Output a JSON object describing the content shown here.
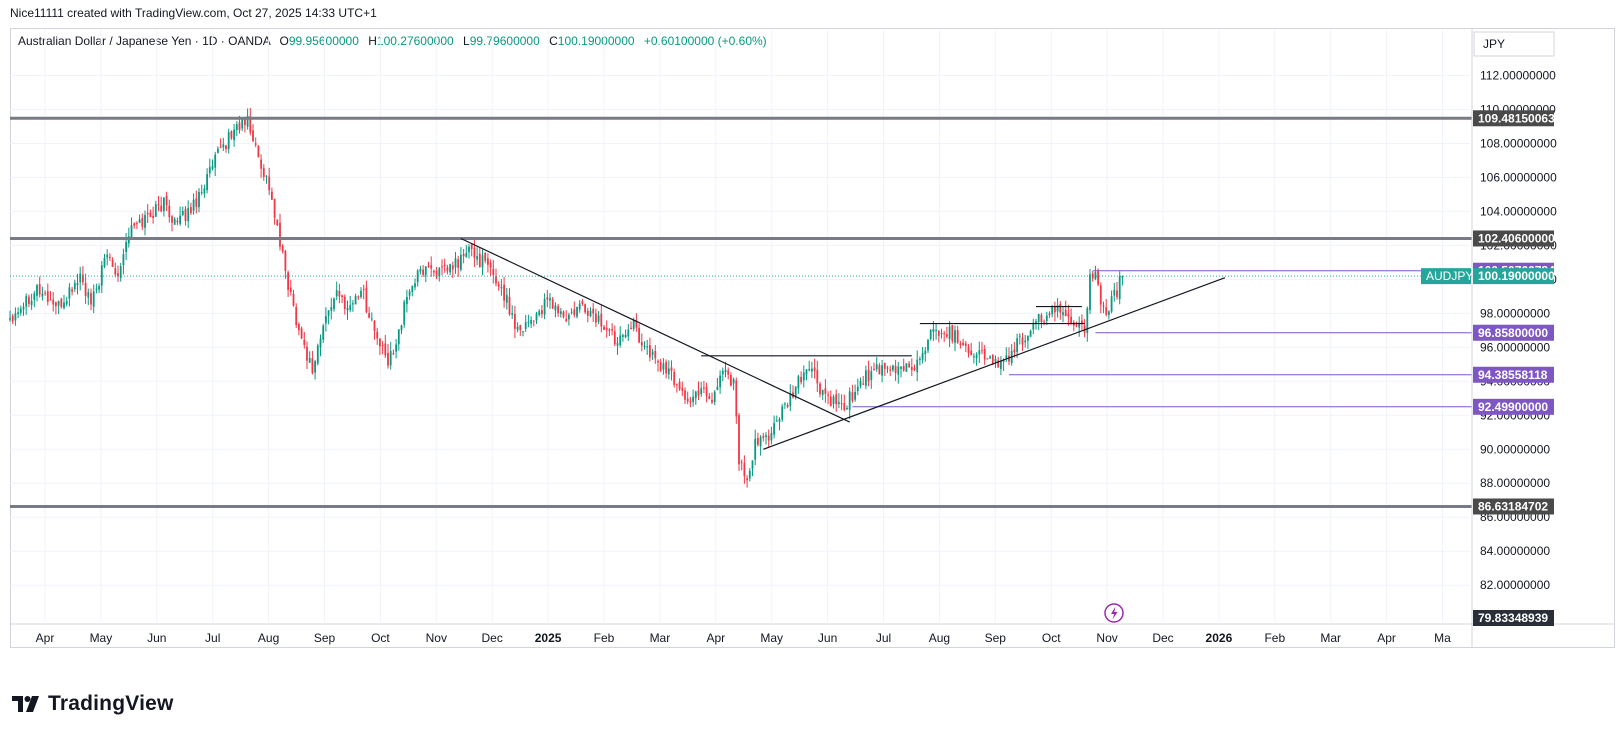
{
  "header": {
    "attribution": "Nice11111 created with TradingView.com, Oct 27, 2025 14:33 UTC+1"
  },
  "legend": {
    "symbol": "Australian Dollar / Japanese Yen · 1D · OANDA",
    "open_label": "O",
    "open": "99.95600000",
    "high_label": "H",
    "high": "100.27600000",
    "low_label": "L",
    "low": "99.79600000",
    "close_label": "C",
    "close": "100.19000000",
    "change": "+0.60100000 (+0.60%)"
  },
  "currency": "JPY",
  "footer": {
    "brand": "TradingView",
    "logo_icon": "tradingview-logo-icon"
  },
  "colors": {
    "up": "#089981",
    "down": "#f23645",
    "level_line": "#787b86",
    "purple": "#7e57c2",
    "teal": "#26a69a"
  },
  "chart_data": {
    "type": "candlestick",
    "symbol": "AUDJPY",
    "ylim": [
      79.83348939,
      113.5
    ],
    "y_ticks": [
      "112.00000000",
      "110.00000000",
      "108.00000000",
      "106.00000000",
      "104.00000000",
      "102.00000000",
      "100.00000000",
      "98.00000000",
      "96.00000000",
      "94.00000000",
      "92.00000000",
      "90.00000000",
      "88.00000000",
      "86.00000000",
      "84.00000000",
      "82.00000000"
    ],
    "x_ticks": [
      "Apr",
      "May",
      "Jun",
      "Jul",
      "Aug",
      "Sep",
      "Oct",
      "Nov",
      "Dec",
      "2025",
      "Feb",
      "Mar",
      "Apr",
      "May",
      "Jun",
      "Jul",
      "Aug",
      "Sep",
      "Oct",
      "Nov",
      "Dec",
      "2026",
      "Feb",
      "Mar",
      "Apr",
      "Ma"
    ],
    "price_path": [
      [
        0,
        97.8
      ],
      [
        10,
        99.5
      ],
      [
        18,
        98.3
      ],
      [
        26,
        100.2
      ],
      [
        30,
        98.4
      ],
      [
        36,
        101.5
      ],
      [
        40,
        100.4
      ],
      [
        44,
        102.8
      ],
      [
        50,
        103.6
      ],
      [
        57,
        104.5
      ],
      [
        62,
        103.2
      ],
      [
        68,
        104.4
      ],
      [
        74,
        106.3
      ],
      [
        78,
        107.6
      ],
      [
        84,
        109.0
      ],
      [
        88,
        109.3
      ],
      [
        92,
        107.2
      ],
      [
        96,
        105.5
      ],
      [
        100,
        102.0
      ],
      [
        104,
        99.0
      ],
      [
        108,
        96.5
      ],
      [
        112,
        94.7
      ],
      [
        116,
        97.2
      ],
      [
        120,
        99.1
      ],
      [
        126,
        98.4
      ],
      [
        130,
        99.5
      ],
      [
        136,
        96.5
      ],
      [
        140,
        95.0
      ],
      [
        144,
        97.0
      ],
      [
        148,
        99.5
      ],
      [
        154,
        100.8
      ],
      [
        160,
        100.3
      ],
      [
        166,
        101.0
      ],
      [
        170,
        101.7
      ],
      [
        176,
        100.9
      ],
      [
        182,
        99.5
      ],
      [
        188,
        97.1
      ],
      [
        194,
        97.8
      ],
      [
        200,
        98.7
      ],
      [
        206,
        97.6
      ],
      [
        212,
        98.4
      ],
      [
        218,
        97.6
      ],
      [
        224,
        96.5
      ],
      [
        230,
        97.5
      ],
      [
        236,
        95.8
      ],
      [
        242,
        94.8
      ],
      [
        248,
        93.7
      ],
      [
        252,
        92.6
      ],
      [
        256,
        93.8
      ],
      [
        260,
        92.9
      ],
      [
        264,
        94.8
      ],
      [
        268,
        94.0
      ],
      [
        270,
        89.5
      ],
      [
        273,
        87.8
      ],
      [
        276,
        90.2
      ],
      [
        280,
        90.7
      ],
      [
        284,
        91.6
      ],
      [
        288,
        92.6
      ],
      [
        292,
        93.9
      ],
      [
        296,
        95.0
      ],
      [
        300,
        93.5
      ],
      [
        304,
        92.8
      ],
      [
        308,
        92.3
      ],
      [
        312,
        93.2
      ],
      [
        316,
        94.2
      ],
      [
        320,
        94.6
      ],
      [
        324,
        94.5
      ],
      [
        330,
        94.8
      ],
      [
        336,
        95.0
      ],
      [
        340,
        96.5
      ],
      [
        344,
        97.1
      ],
      [
        350,
        96.7
      ],
      [
        356,
        95.8
      ],
      [
        362,
        95.4
      ],
      [
        368,
        94.9
      ],
      [
        372,
        96.1
      ],
      [
        378,
        96.8
      ],
      [
        382,
        97.8
      ],
      [
        386,
        98.1
      ],
      [
        390,
        98.0
      ],
      [
        394,
        97.6
      ],
      [
        398,
        97.3
      ],
      [
        400,
        99.9
      ],
      [
        402,
        100.4
      ],
      [
        404,
        98.3
      ],
      [
        406,
        97.7
      ],
      [
        409,
        99.0
      ],
      [
        412,
        100.19
      ]
    ],
    "horizontal_levels": [
      {
        "label": "109.48150063",
        "value": 109.4815
      },
      {
        "label": "102.40600000",
        "value": 102.406
      },
      {
        "label": "86.63184702",
        "value": 86.63185
      }
    ],
    "ray_levels": [
      {
        "label": "100.50766784",
        "value": 100.50767,
        "from": 401
      },
      {
        "label": "96.85800000",
        "value": 96.858,
        "from": 402
      },
      {
        "label": "94.38558118",
        "value": 94.38558,
        "from": 370
      },
      {
        "label": "92.49900000",
        "value": 92.499,
        "from": 312
      }
    ],
    "trendlines": [
      {
        "from": [
          167,
          102.406
        ],
        "to": [
          311,
          91.6
        ]
      },
      {
        "from": [
          279,
          90.0
        ],
        "to": [
          450,
          100.1
        ]
      }
    ],
    "pattern_lines": [
      {
        "from": [
          256,
          95.5
        ],
        "to": [
          334,
          95.5
        ]
      },
      {
        "from": [
          337,
          97.4
        ],
        "to": [
          398,
          97.4
        ]
      },
      {
        "from": [
          380,
          98.4
        ],
        "to": [
          397,
          98.4
        ]
      }
    ],
    "last": {
      "symbol_label": "AUDJPY",
      "value_label": "100.19000000",
      "value": 100.19
    },
    "axis_bottom_label": "79.83348939"
  }
}
